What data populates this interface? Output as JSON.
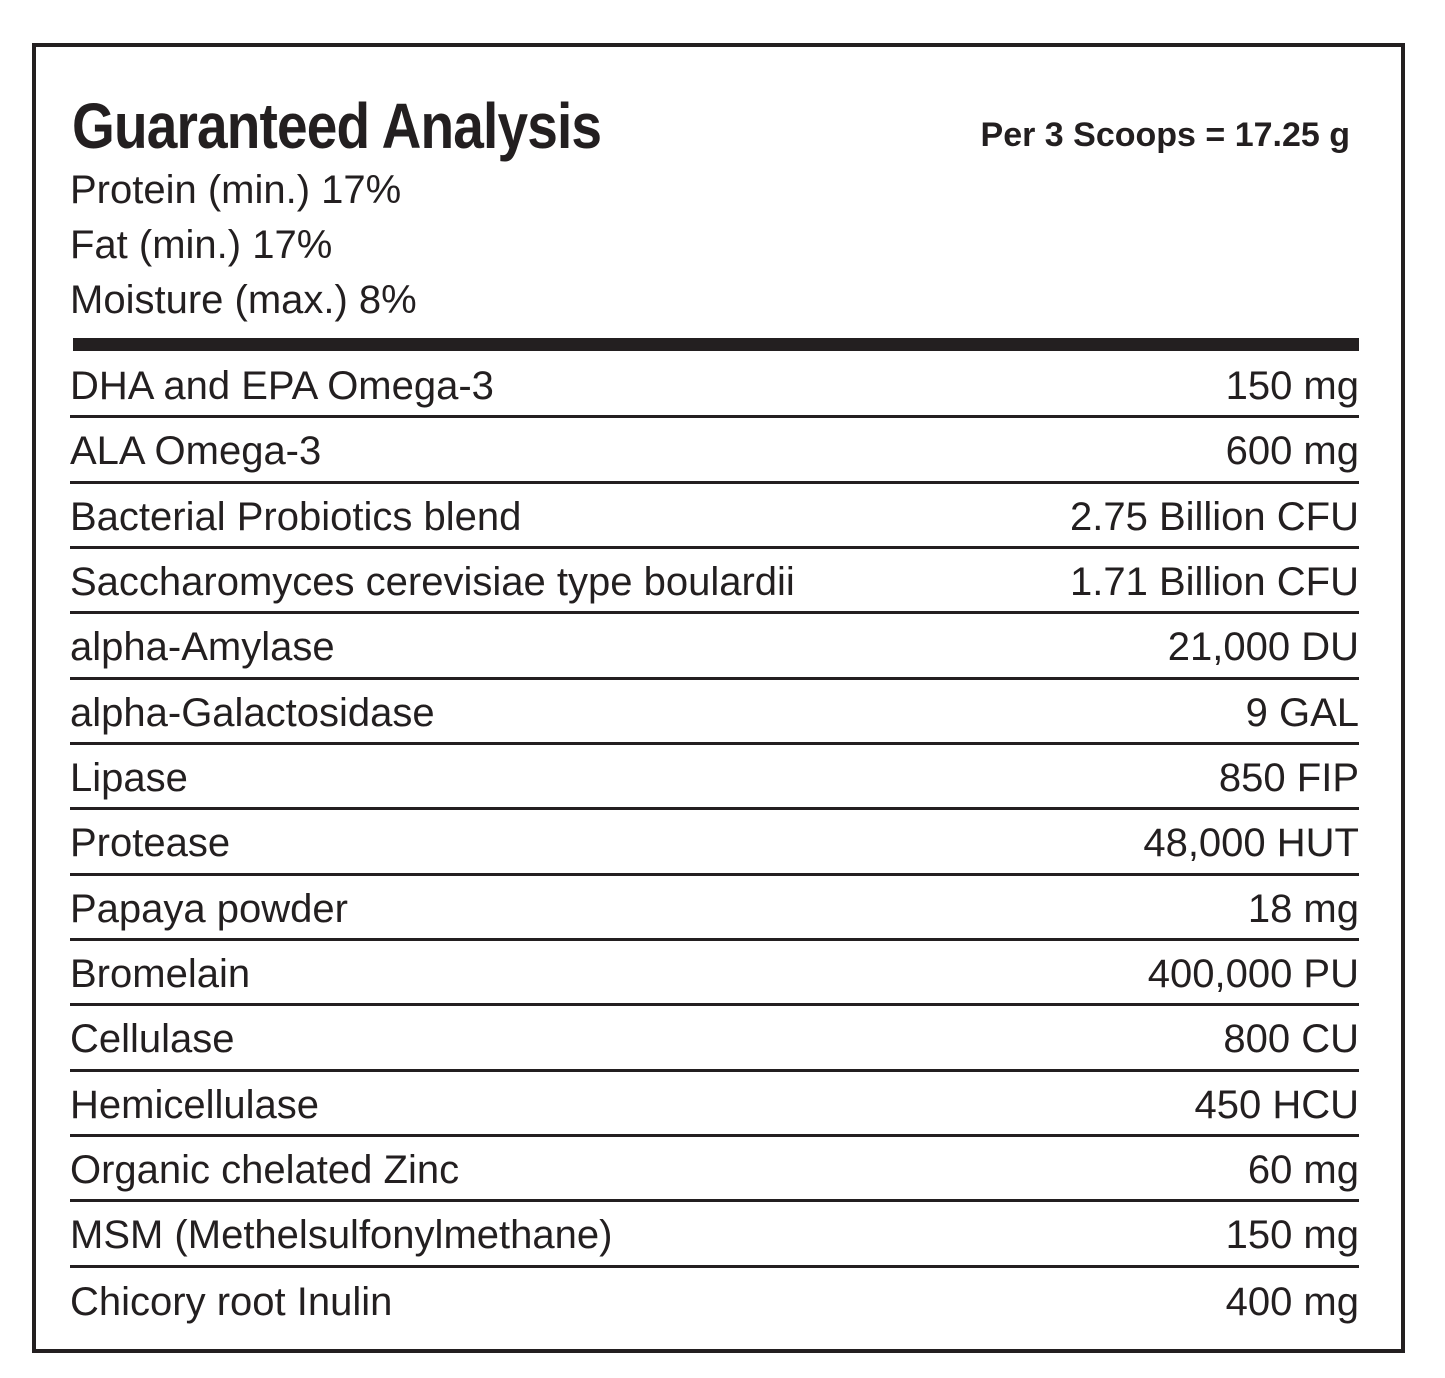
{
  "title": "Guaranteed Analysis",
  "serving_size": "Per 3 Scoops = 17.25 g",
  "guaranteed_analysis": [
    "Protein (min.) 17%",
    "Fat (min.) 17%",
    "Moisture (max.) 8%"
  ],
  "ingredients": [
    {
      "name": "DHA and EPA Omega-3",
      "amount": "150 mg"
    },
    {
      "name": "ALA Omega-3",
      "amount": "600 mg"
    },
    {
      "name": "Bacterial Probiotics blend",
      "amount": "2.75 Billion CFU"
    },
    {
      "name": "Saccharomyces cerevisiae type boulardii",
      "amount": "1.71 Billion CFU"
    },
    {
      "name": "alpha-Amylase",
      "amount": "21,000 DU"
    },
    {
      "name": "alpha-Galactosidase",
      "amount": "9 GAL"
    },
    {
      "name": "Lipase",
      "amount": "850 FIP"
    },
    {
      "name": "Protease",
      "amount": "48,000 HUT"
    },
    {
      "name": "Papaya powder",
      "amount": "18 mg"
    },
    {
      "name": "Bromelain",
      "amount": "400,000 PU"
    },
    {
      "name": "Cellulase",
      "amount": "800 CU"
    },
    {
      "name": "Hemicellulase",
      "amount": "450 HCU"
    },
    {
      "name": "Organic chelated Zinc",
      "amount": "60 mg"
    },
    {
      "name": "MSM (Methelsulfonylmethane)",
      "amount": "150 mg"
    },
    {
      "name": "Chicory root Inulin",
      "amount": "400 mg"
    }
  ],
  "colors": {
    "ink": "#231f20",
    "background": "#ffffff"
  }
}
